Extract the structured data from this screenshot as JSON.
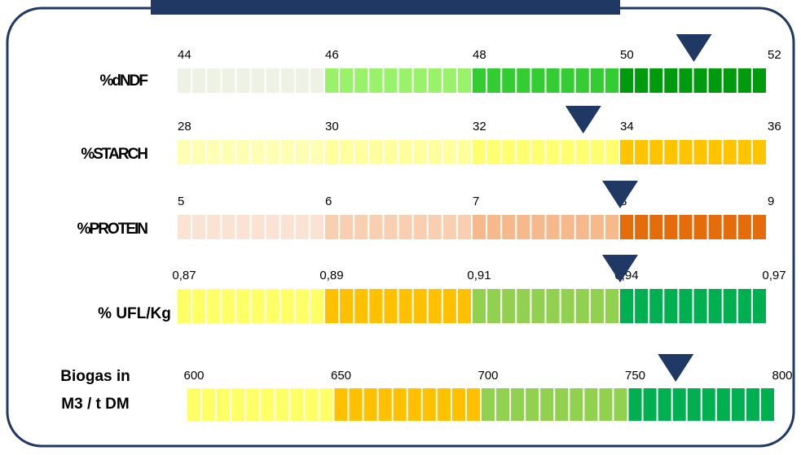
{
  "chart_data": [
    {
      "type": "gauge",
      "label": [
        "%dNDF"
      ],
      "ticks": [
        44,
        46,
        48,
        50,
        52
      ],
      "colors": [
        "#eef2e4",
        "#99f26a",
        "#33cc33",
        "#009a0e"
      ],
      "value": 51
    },
    {
      "type": "gauge",
      "label": [
        "%STARCH"
      ],
      "ticks": [
        28,
        30,
        32,
        34,
        36
      ],
      "colors": [
        "#ffffb3",
        "#ffff9e",
        "#ffff70",
        "#ffc400"
      ],
      "value": 33.5
    },
    {
      "type": "gauge",
      "label": [
        "%PROTEIN"
      ],
      "ticks": [
        5,
        6,
        7,
        8,
        9
      ],
      "colors": [
        "#fbe3d4",
        "#f9cfb1",
        "#f6b98c",
        "#e46c0a"
      ],
      "value": 8
    },
    {
      "type": "gauge",
      "label": [
        "% UFL/Kg"
      ],
      "ticks": [
        {
          "value": 0.87,
          "label": "0,87"
        },
        {
          "value": 0.89,
          "label": "0,89"
        },
        {
          "value": 0.91,
          "label": "0,91"
        },
        {
          "value": 0.94,
          "label": "0,94"
        },
        {
          "value": 0.97,
          "label": "0,97"
        }
      ],
      "colors": [
        "#ffff66",
        "#ffc000",
        "#92d050",
        "#00b050"
      ],
      "value": 0.94
    },
    {
      "type": "gauge",
      "label": [
        "Biogas in",
        "M3 / t DM"
      ],
      "ticks": [
        600,
        650,
        700,
        750,
        800
      ],
      "colors": [
        "#ffff66",
        "#ffc000",
        "#92d050",
        "#00b050"
      ],
      "value": 766
    }
  ]
}
